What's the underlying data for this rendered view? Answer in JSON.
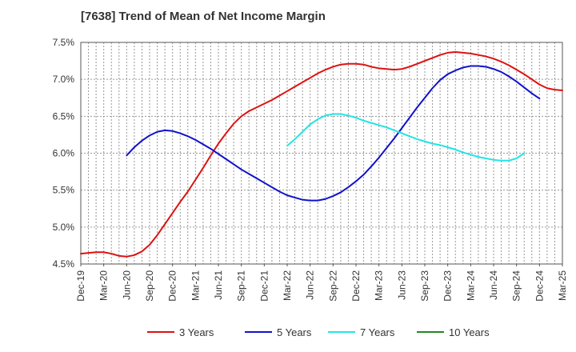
{
  "chart_data": {
    "type": "line",
    "title": "[7638]  Trend of Mean of Net Income Margin",
    "xlabel": "",
    "ylabel": "",
    "x_ticks": [
      "Dec-19",
      "Mar-20",
      "Jun-20",
      "Sep-20",
      "Dec-20",
      "Mar-21",
      "Jun-21",
      "Sep-21",
      "Dec-21",
      "Mar-22",
      "Jun-22",
      "Sep-22",
      "Dec-22",
      "Mar-23",
      "Jun-23",
      "Sep-23",
      "Dec-23",
      "Mar-24",
      "Jun-24",
      "Sep-24",
      "Dec-24",
      "Mar-25"
    ],
    "y_ticks": [
      "4.5%",
      "5.0%",
      "5.5%",
      "6.0%",
      "6.5%",
      "7.0%",
      "7.5%"
    ],
    "ylim": [
      4.5,
      7.5
    ],
    "grid": true,
    "legend_position": "bottom",
    "series": [
      {
        "name": "3 Years",
        "color": "#dd1111",
        "start_index": 0,
        "values": [
          4.64,
          4.65,
          4.66,
          4.66,
          4.64,
          4.61,
          4.6,
          4.62,
          4.67,
          4.76,
          4.89,
          5.04,
          5.19,
          5.34,
          5.48,
          5.64,
          5.8,
          5.97,
          6.13,
          6.27,
          6.4,
          6.5,
          6.57,
          6.62,
          6.67,
          6.72,
          6.78,
          6.84,
          6.9,
          6.96,
          7.02,
          7.08,
          7.13,
          7.17,
          7.2,
          7.21,
          7.21,
          7.2,
          7.17,
          7.15,
          7.14,
          7.13,
          7.14,
          7.17,
          7.21,
          7.25,
          7.29,
          7.33,
          7.36,
          7.37,
          7.36,
          7.35,
          7.33,
          7.31,
          7.28,
          7.24,
          7.19,
          7.13,
          7.07,
          7.0,
          6.93,
          6.88,
          6.86,
          6.85
        ]
      },
      {
        "name": "5 Years",
        "color": "#1111cc",
        "start_index": 6,
        "values": [
          5.97,
          6.08,
          6.17,
          6.24,
          6.29,
          6.31,
          6.3,
          6.27,
          6.23,
          6.18,
          6.12,
          6.06,
          5.99,
          5.92,
          5.85,
          5.78,
          5.72,
          5.66,
          5.6,
          5.54,
          5.48,
          5.43,
          5.4,
          5.37,
          5.36,
          5.36,
          5.38,
          5.42,
          5.47,
          5.54,
          5.62,
          5.71,
          5.82,
          5.94,
          6.07,
          6.2,
          6.34,
          6.48,
          6.62,
          6.75,
          6.88,
          6.99,
          7.07,
          7.12,
          7.16,
          7.18,
          7.18,
          7.17,
          7.14,
          7.1,
          7.04,
          6.97,
          6.89,
          6.81,
          6.74
        ]
      },
      {
        "name": "7 Years",
        "color": "#22e5e5",
        "start_index": 27,
        "values": [
          6.1,
          6.19,
          6.29,
          6.39,
          6.46,
          6.51,
          6.53,
          6.53,
          6.51,
          6.48,
          6.44,
          6.41,
          6.38,
          6.35,
          6.31,
          6.27,
          6.23,
          6.19,
          6.16,
          6.13,
          6.11,
          6.08,
          6.05,
          6.01,
          5.98,
          5.95,
          5.93,
          5.91,
          5.9,
          5.9,
          5.93,
          6.0
        ]
      },
      {
        "name": "10 Years",
        "color": "#228822",
        "start_index": 0,
        "values": []
      }
    ]
  }
}
